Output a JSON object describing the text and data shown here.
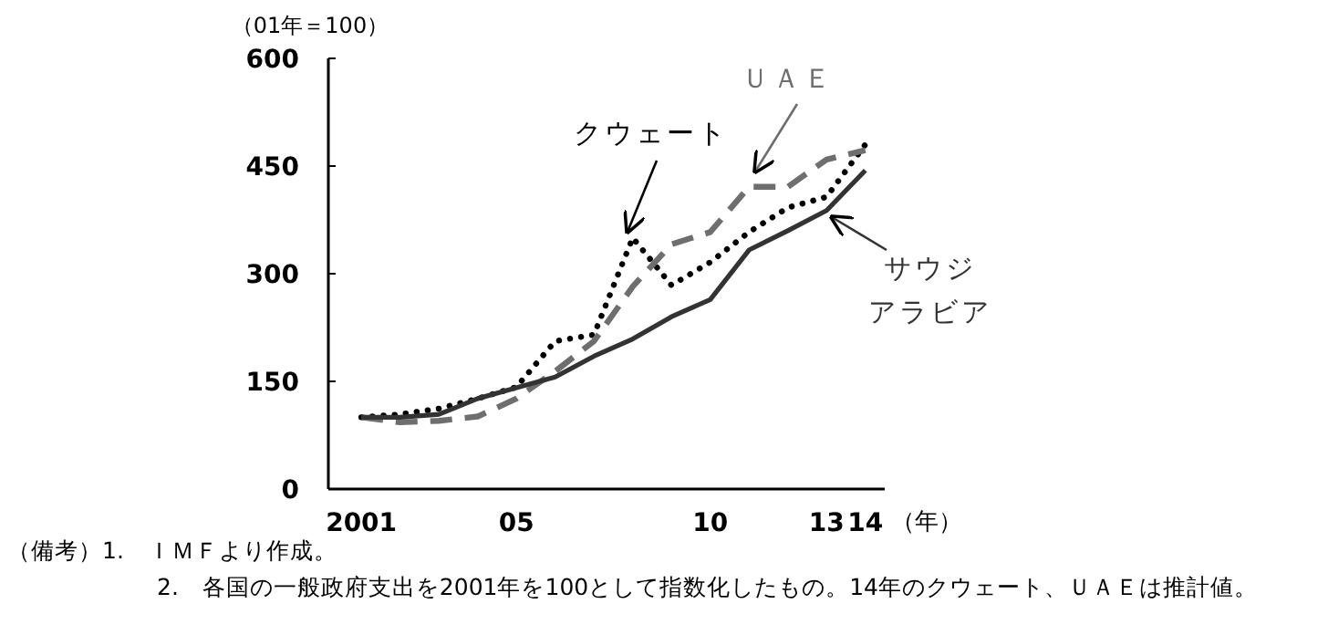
{
  "chart_data": {
    "type": "line",
    "ylabel": "（01年＝100）",
    "xlabel": "（年）",
    "x": [
      2001,
      2002,
      2003,
      2004,
      2005,
      2006,
      2007,
      2008,
      2009,
      2010,
      2011,
      2012,
      2013,
      2014
    ],
    "xlim": [
      2000.15,
      2014.5
    ],
    "xticks": [
      {
        "value": 2001,
        "label": "2001"
      },
      {
        "value": 2005,
        "label": "05"
      },
      {
        "value": 2010,
        "label": "10"
      },
      {
        "value": 2013,
        "label": "13"
      },
      {
        "value": 2014,
        "label": "14"
      }
    ],
    "ylim": [
      0,
      600
    ],
    "yticks": [
      0,
      150,
      300,
      450,
      600
    ],
    "series": [
      {
        "name": "クウェート",
        "color": "#000000",
        "line_style": "dotted",
        "values": [
          100,
          104,
          112,
          126,
          142,
          206,
          215,
          350,
          284,
          316,
          358,
          392,
          407,
          480
        ]
      },
      {
        "name": "ＵＡＥ",
        "color": "#6e6e6e",
        "line_style": "dashed",
        "values": [
          100,
          93,
          95,
          101,
          126,
          164,
          206,
          282,
          341,
          358,
          421,
          421,
          459,
          472
        ]
      },
      {
        "name": "サウジアラビア",
        "color": "#333333",
        "line_style": "solid",
        "values": [
          100,
          100,
          104,
          126,
          141,
          156,
          185,
          209,
          240,
          264,
          333,
          360,
          388,
          444
        ]
      }
    ],
    "grid": false,
    "annotations": [
      "（備考）1.　ＩＭＦより作成。",
      "2.　各国の一般政府支出を2001年を100として指数化したもの。14年のクウェート、ＵＡＥは推計値。"
    ]
  }
}
